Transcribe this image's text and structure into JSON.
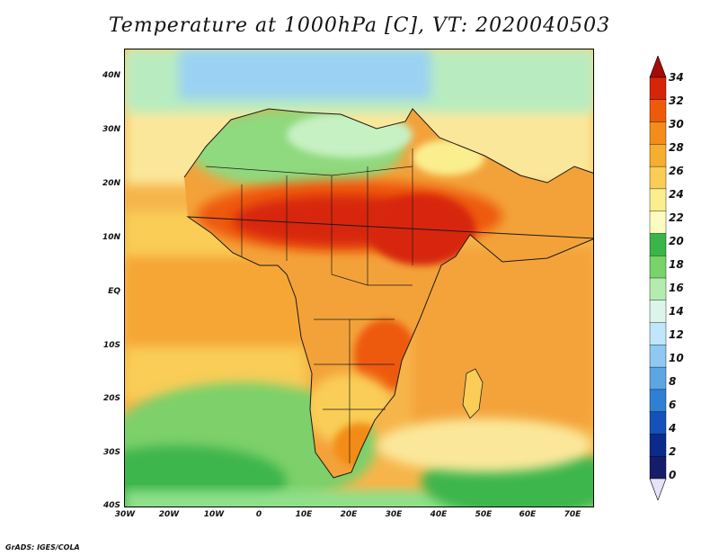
{
  "title": "Temperature at 1000hPa [C], VT: 2020040503",
  "credit": "GrADS: IGES/COLA",
  "map": {
    "region": "Africa and surrounding oceans",
    "field": "temperature at 1000hPa",
    "units": "C",
    "valid_time": "2020040503",
    "lon_range": [
      -30,
      75
    ],
    "lat_range": [
      -40,
      45
    ],
    "lat_ticks": [
      "40N",
      "30N",
      "20N",
      "10N",
      "EQ",
      "10S",
      "20S",
      "30S",
      "40S"
    ],
    "lon_ticks": [
      "30W",
      "20W",
      "10W",
      "0",
      "10E",
      "20E",
      "30E",
      "40E",
      "50E",
      "60E",
      "70E"
    ]
  },
  "colorbar": {
    "levels": [
      "34",
      "32",
      "30",
      "28",
      "26",
      "24",
      "22",
      "20",
      "18",
      "16",
      "14",
      "12",
      "10",
      "8",
      "6",
      "4",
      "2",
      "0"
    ],
    "colors": [
      "#a50a0a",
      "#d7250a",
      "#ee5a0c",
      "#f38c18",
      "#f7ad2e",
      "#f9cd56",
      "#fbee8e",
      "#fdfbc0",
      "#3ab54a",
      "#78d36a",
      "#b4ecb0",
      "#dcf5ea",
      "#bfe6fa",
      "#8fc9f2",
      "#5ca6e4",
      "#2f7fd4",
      "#1451b8",
      "#0a2a8c",
      "#151c6a",
      "#e6e3f6"
    ]
  }
}
